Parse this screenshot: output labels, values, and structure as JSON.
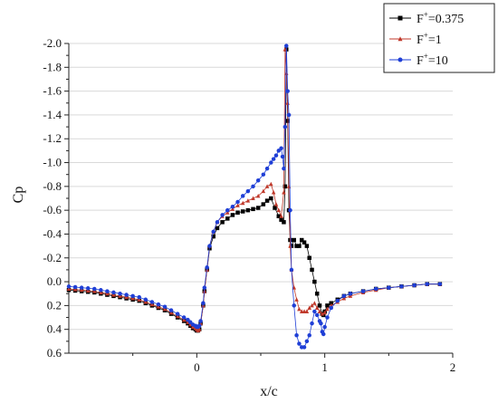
{
  "chart_data": {
    "type": "line",
    "xlabel": "x/c",
    "ylabel": "Cp",
    "xlim": [
      -1,
      2
    ],
    "ylim": [
      0.6,
      -2.0
    ],
    "y_inverted": true,
    "grid": true,
    "grid_axis": "y",
    "legend_placement": "top-right",
    "x_ticks": [
      0,
      1,
      2
    ],
    "x_tick_labels": [
      "0",
      "1",
      "2"
    ],
    "y_ticks": [
      -2.0,
      -1.8,
      -1.6,
      -1.4,
      -1.2,
      -1.0,
      -0.8,
      -0.6,
      -0.4,
      -0.2,
      0.0,
      0.2,
      0.4,
      0.6
    ],
    "y_tick_labels": [
      "-2.0",
      "-1.8",
      "-1.6",
      "-1.4",
      "-1.2",
      "-1.0",
      "-0.8",
      "-0.6",
      "-0.4",
      "-0.2",
      "0.0",
      "0.2",
      "0.4",
      "0.6"
    ],
    "series": [
      {
        "name_base": "F",
        "name_sup": "+",
        "name_rest": "=0.375",
        "color": "#000000",
        "marker": "square",
        "x": [
          -1.0,
          -0.95,
          -0.9,
          -0.85,
          -0.8,
          -0.75,
          -0.7,
          -0.65,
          -0.6,
          -0.55,
          -0.5,
          -0.45,
          -0.4,
          -0.35,
          -0.3,
          -0.25,
          -0.2,
          -0.15,
          -0.1,
          -0.07,
          -0.05,
          -0.03,
          -0.01,
          0.0,
          0.01,
          0.02,
          0.03,
          0.05,
          0.06,
          0.08,
          0.1,
          0.13,
          0.16,
          0.2,
          0.24,
          0.28,
          0.32,
          0.36,
          0.4,
          0.44,
          0.48,
          0.52,
          0.55,
          0.58,
          0.61,
          0.64,
          0.66,
          0.68,
          0.69,
          0.7,
          0.71,
          0.72,
          0.73,
          0.74,
          0.76,
          0.78,
          0.8,
          0.82,
          0.84,
          0.86,
          0.88,
          0.9,
          0.92,
          0.94,
          0.96,
          0.98,
          0.99,
          1.0,
          1.02,
          1.05,
          1.1,
          1.15,
          1.2,
          1.3,
          1.4,
          1.5,
          1.6,
          1.7,
          1.8,
          1.9
        ],
        "y": [
          0.07,
          0.075,
          0.08,
          0.085,
          0.09,
          0.1,
          0.11,
          0.12,
          0.13,
          0.14,
          0.15,
          0.16,
          0.18,
          0.2,
          0.22,
          0.24,
          0.27,
          0.3,
          0.33,
          0.35,
          0.37,
          0.39,
          0.4,
          0.41,
          0.41,
          0.4,
          0.35,
          0.2,
          0.08,
          -0.1,
          -0.28,
          -0.38,
          -0.45,
          -0.5,
          -0.53,
          -0.56,
          -0.58,
          -0.59,
          -0.6,
          -0.61,
          -0.62,
          -0.65,
          -0.68,
          -0.7,
          -0.62,
          -0.55,
          -0.52,
          -0.5,
          -0.8,
          -1.95,
          -1.35,
          -0.6,
          -0.35,
          -0.3,
          -0.35,
          -0.3,
          -0.3,
          -0.35,
          -0.33,
          -0.3,
          -0.2,
          -0.1,
          0.0,
          0.1,
          0.2,
          0.27,
          0.28,
          0.25,
          0.2,
          0.18,
          0.15,
          0.12,
          0.1,
          0.08,
          0.06,
          0.05,
          0.04,
          0.03,
          0.02,
          0.02
        ]
      },
      {
        "name_base": "F",
        "name_sup": "+",
        "name_rest": "=1",
        "color": "#c0392b",
        "marker": "triangle",
        "x": [
          -1.0,
          -0.95,
          -0.9,
          -0.85,
          -0.8,
          -0.75,
          -0.7,
          -0.65,
          -0.6,
          -0.55,
          -0.5,
          -0.45,
          -0.4,
          -0.35,
          -0.3,
          -0.25,
          -0.2,
          -0.15,
          -0.1,
          -0.07,
          -0.05,
          -0.03,
          -0.01,
          0.0,
          0.01,
          0.02,
          0.03,
          0.05,
          0.06,
          0.08,
          0.1,
          0.13,
          0.16,
          0.2,
          0.24,
          0.28,
          0.32,
          0.36,
          0.4,
          0.44,
          0.48,
          0.52,
          0.55,
          0.58,
          0.6,
          0.62,
          0.64,
          0.66,
          0.68,
          0.69,
          0.7,
          0.71,
          0.72,
          0.73,
          0.74,
          0.76,
          0.78,
          0.8,
          0.82,
          0.84,
          0.86,
          0.88,
          0.9,
          0.92,
          0.94,
          0.96,
          0.98,
          1.0,
          1.02,
          1.05,
          1.1,
          1.15,
          1.2,
          1.3,
          1.4,
          1.5,
          1.6,
          1.7,
          1.8,
          1.9
        ],
        "y": [
          0.06,
          0.065,
          0.07,
          0.075,
          0.08,
          0.09,
          0.1,
          0.11,
          0.12,
          0.13,
          0.14,
          0.15,
          0.17,
          0.19,
          0.21,
          0.23,
          0.26,
          0.29,
          0.32,
          0.34,
          0.36,
          0.38,
          0.39,
          0.4,
          0.41,
          0.4,
          0.35,
          0.2,
          0.08,
          -0.1,
          -0.3,
          -0.42,
          -0.5,
          -0.55,
          -0.58,
          -0.61,
          -0.64,
          -0.66,
          -0.68,
          -0.7,
          -0.72,
          -0.76,
          -0.8,
          -0.82,
          -0.75,
          -0.65,
          -0.6,
          -0.55,
          -0.75,
          -1.95,
          -1.75,
          -1.5,
          -0.8,
          -0.3,
          -0.1,
          0.05,
          0.15,
          0.23,
          0.25,
          0.25,
          0.25,
          0.22,
          0.2,
          0.18,
          0.22,
          0.25,
          0.27,
          0.26,
          0.23,
          0.2,
          0.17,
          0.14,
          0.12,
          0.09,
          0.07,
          0.05,
          0.04,
          0.03,
          0.02,
          0.02
        ]
      },
      {
        "name_base": "F",
        "name_sup": "+",
        "name_rest": "=10",
        "color": "#1f3fd6",
        "marker": "circle",
        "x": [
          -1.0,
          -0.95,
          -0.9,
          -0.85,
          -0.8,
          -0.75,
          -0.7,
          -0.65,
          -0.6,
          -0.55,
          -0.5,
          -0.45,
          -0.4,
          -0.35,
          -0.3,
          -0.25,
          -0.2,
          -0.15,
          -0.1,
          -0.07,
          -0.05,
          -0.03,
          -0.01,
          0.0,
          0.01,
          0.02,
          0.03,
          0.05,
          0.06,
          0.08,
          0.1,
          0.13,
          0.16,
          0.2,
          0.24,
          0.28,
          0.32,
          0.36,
          0.4,
          0.44,
          0.48,
          0.52,
          0.55,
          0.58,
          0.6,
          0.62,
          0.64,
          0.66,
          0.67,
          0.68,
          0.69,
          0.7,
          0.71,
          0.72,
          0.73,
          0.74,
          0.76,
          0.78,
          0.8,
          0.82,
          0.84,
          0.86,
          0.88,
          0.9,
          0.92,
          0.94,
          0.96,
          0.97,
          0.98,
          0.99,
          1.0,
          1.02,
          1.05,
          1.1,
          1.15,
          1.2,
          1.3,
          1.4,
          1.5,
          1.6,
          1.7,
          1.8,
          1.9
        ],
        "y": [
          0.04,
          0.045,
          0.05,
          0.055,
          0.06,
          0.07,
          0.08,
          0.09,
          0.1,
          0.11,
          0.12,
          0.13,
          0.15,
          0.17,
          0.19,
          0.21,
          0.24,
          0.27,
          0.3,
          0.32,
          0.34,
          0.36,
          0.37,
          0.38,
          0.38,
          0.37,
          0.33,
          0.18,
          0.05,
          -0.12,
          -0.3,
          -0.42,
          -0.5,
          -0.56,
          -0.6,
          -0.63,
          -0.67,
          -0.72,
          -0.76,
          -0.8,
          -0.85,
          -0.9,
          -0.95,
          -1.0,
          -1.03,
          -1.06,
          -1.1,
          -1.12,
          -1.05,
          -0.95,
          -1.3,
          -1.98,
          -1.6,
          -1.4,
          -0.6,
          -0.1,
          0.2,
          0.45,
          0.52,
          0.55,
          0.55,
          0.5,
          0.45,
          0.35,
          0.25,
          0.28,
          0.33,
          0.35,
          0.42,
          0.44,
          0.38,
          0.3,
          0.22,
          0.16,
          0.12,
          0.1,
          0.08,
          0.06,
          0.05,
          0.04,
          0.03,
          0.02,
          0.02
        ]
      }
    ]
  }
}
